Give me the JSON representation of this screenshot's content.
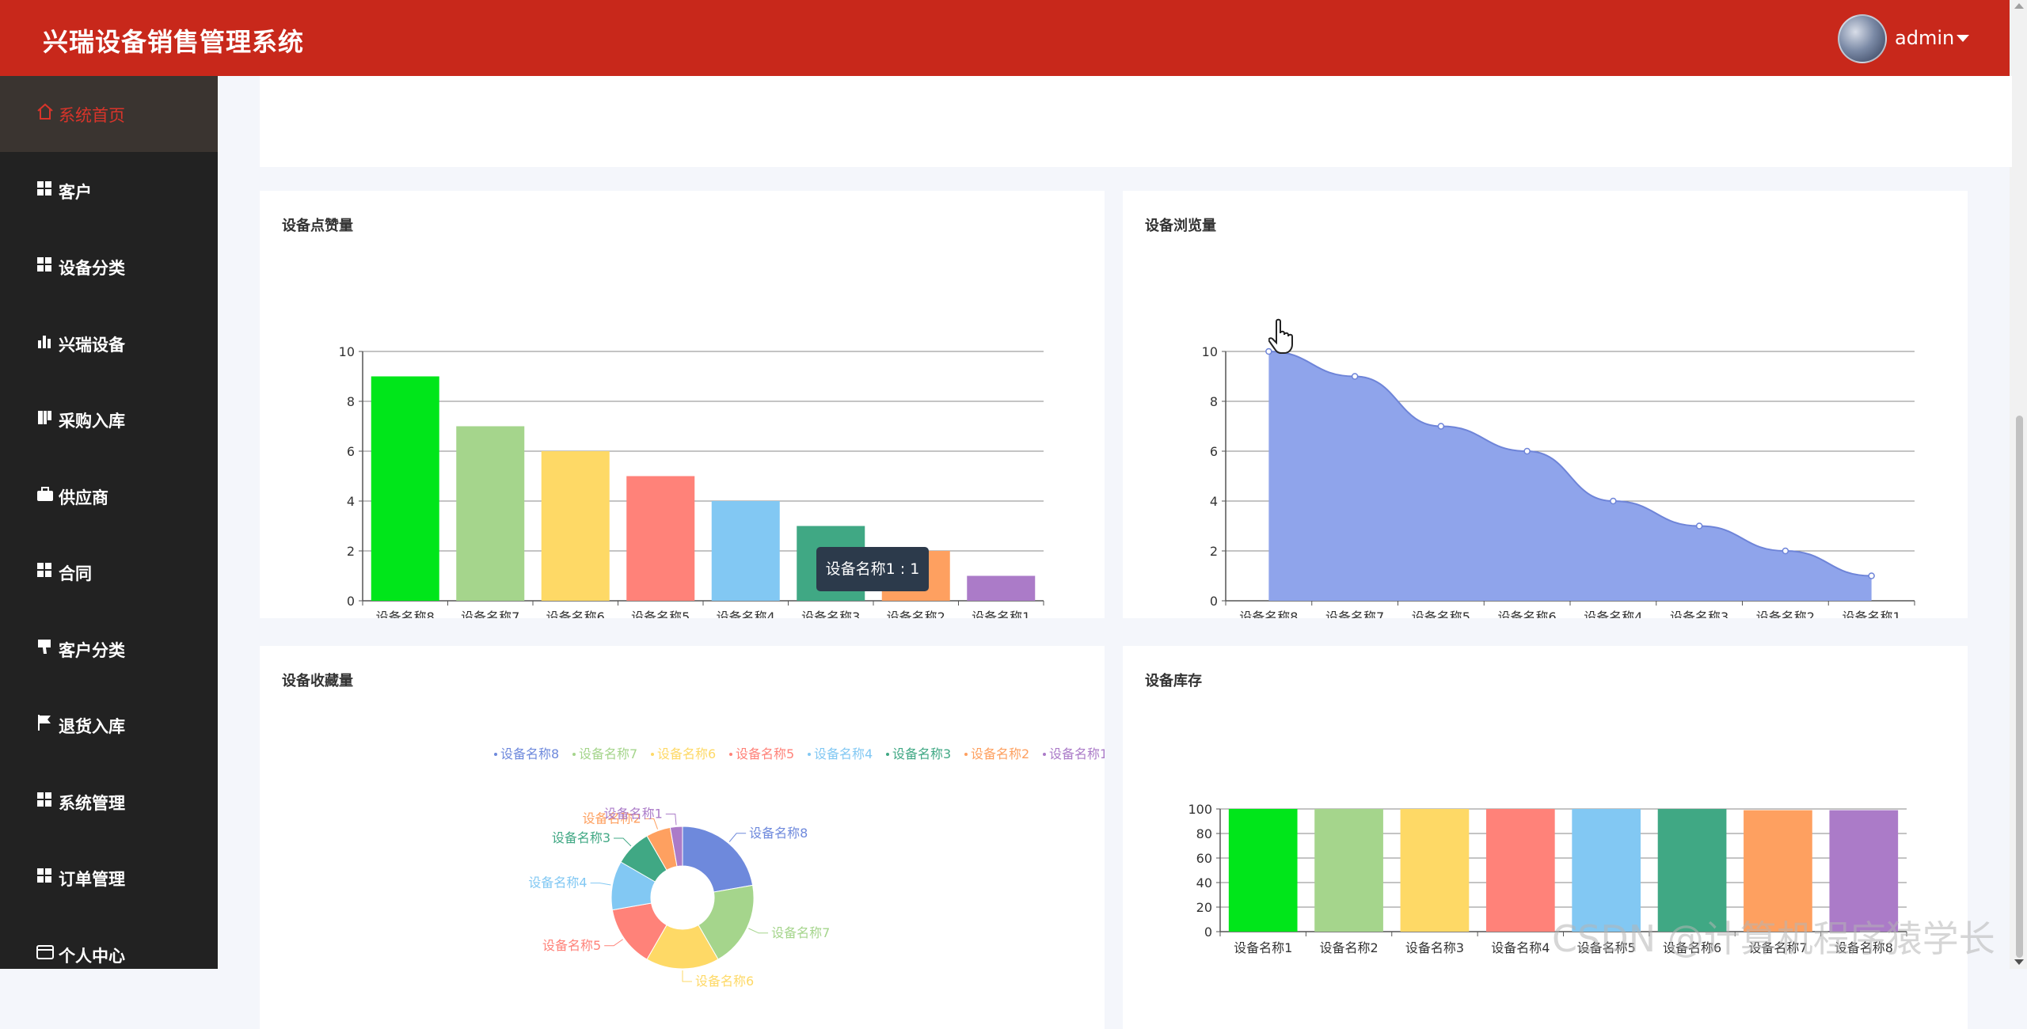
{
  "app": {
    "title": "兴瑞设备销售管理系统",
    "user": "admin"
  },
  "sidebar": {
    "items": [
      {
        "label": "系统首页",
        "icon": "home-icon",
        "name": "home"
      },
      {
        "label": "客户",
        "icon": "grid-icon",
        "name": "customers"
      },
      {
        "label": "设备分类",
        "icon": "grid-icon",
        "name": "device-category"
      },
      {
        "label": "兴瑞设备",
        "icon": "bar-chart-icon",
        "name": "devices"
      },
      {
        "label": "采购入库",
        "icon": "book-icon",
        "name": "purchase-in"
      },
      {
        "label": "供应商",
        "icon": "briefcase-icon",
        "name": "suppliers"
      },
      {
        "label": "合同",
        "icon": "grid-icon",
        "name": "contracts"
      },
      {
        "label": "客户分类",
        "icon": "thumbs-down-icon",
        "name": "customer-category"
      },
      {
        "label": "退货入库",
        "icon": "flag-icon",
        "name": "returns"
      },
      {
        "label": "系统管理",
        "icon": "grid-icon",
        "name": "system-admin"
      },
      {
        "label": "订单管理",
        "icon": "grid-icon",
        "name": "orders"
      },
      {
        "label": "个人中心",
        "icon": "id-card-icon",
        "name": "profile"
      }
    ]
  },
  "tooltip": {
    "text": "设备名称1 : 1"
  },
  "watermark": "CSDN @计算机程序猿学长",
  "colors": {
    "accent": "#c8281b",
    "palette": [
      "#00e61a",
      "#a5d58c",
      "#fed966",
      "#ff8279",
      "#82c8f3",
      "#40a884",
      "#fea060",
      "#ab7bc8"
    ],
    "area": "#8fa4eb",
    "donut": [
      "#6e89dc",
      "#a5d58c",
      "#fed966",
      "#ff8279",
      "#82c8f3",
      "#40a884",
      "#fea060",
      "#ab7bc8"
    ]
  },
  "chart_data": [
    {
      "type": "bar",
      "title": "设备点赞量",
      "categories": [
        "设备名称8",
        "设备名称7",
        "设备名称6",
        "设备名称5",
        "设备名称4",
        "设备名称3",
        "设备名称2",
        "设备名称1"
      ],
      "values": [
        9,
        7,
        6,
        5,
        4,
        3,
        2,
        1
      ],
      "ylim": [
        0,
        10
      ],
      "yticks": [
        0,
        2,
        4,
        6,
        8,
        10
      ],
      "grid": true
    },
    {
      "type": "area",
      "title": "设备浏览量",
      "categories": [
        "设备名称8",
        "设备名称7",
        "设备名称5",
        "设备名称6",
        "设备名称4",
        "设备名称3",
        "设备名称2",
        "设备名称1"
      ],
      "values": [
        10,
        9,
        7,
        6,
        4,
        3,
        2,
        1
      ],
      "ylim": [
        0,
        10
      ],
      "yticks": [
        0,
        2,
        4,
        6,
        8,
        10
      ],
      "grid": true
    },
    {
      "type": "pie",
      "title": "设备收藏量",
      "legend": [
        "设备名称8",
        "设备名称7",
        "设备名称6",
        "设备名称5",
        "设备名称4",
        "设备名称3",
        "设备名称2",
        "设备名称1"
      ],
      "legend_position": "top-right",
      "values": [
        8,
        7,
        6,
        5,
        4,
        3,
        2,
        1
      ]
    },
    {
      "type": "bar",
      "title": "设备库存",
      "categories": [
        "设备名称1",
        "设备名称2",
        "设备名称3",
        "设备名称4",
        "设备名称5",
        "设备名称6",
        "设备名称7",
        "设备名称8"
      ],
      "values": [
        100,
        100,
        100,
        100,
        100,
        100,
        99,
        99
      ],
      "ylim": [
        0,
        100
      ],
      "yticks": [
        0,
        20,
        40,
        60,
        80,
        100
      ],
      "grid": true
    }
  ]
}
